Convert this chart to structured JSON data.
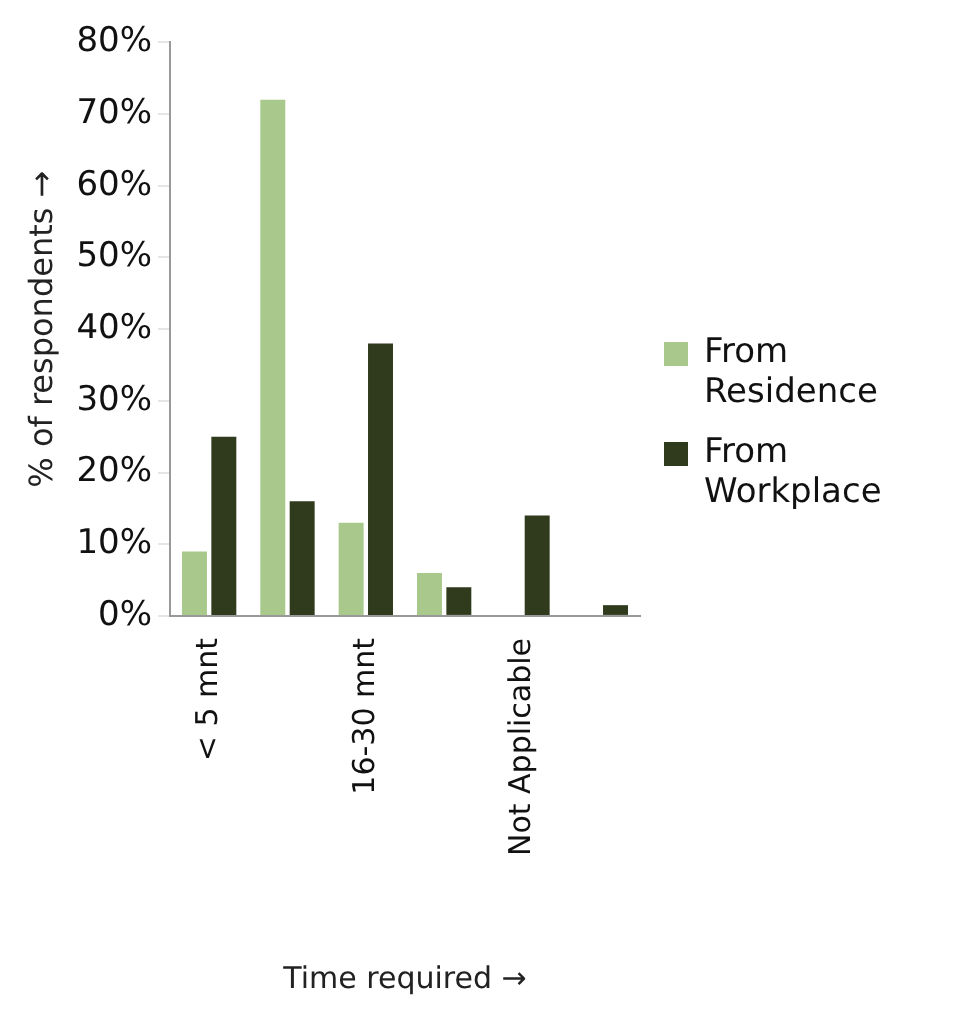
{
  "chart_data": {
    "type": "bar",
    "xlabel": "Time required →",
    "ylabel": "% of respondents →",
    "categories": [
      "< 5 mnt",
      null,
      "16-30 mnt",
      null,
      "Not Applicable",
      null
    ],
    "series": [
      {
        "name": "From Residence",
        "color": "#a9c98c",
        "values": [
          9,
          72,
          13,
          6,
          0,
          0
        ]
      },
      {
        "name": "From Workplace",
        "color": "#2f3b1c",
        "values": [
          25,
          16,
          38,
          4,
          14,
          1.5
        ]
      }
    ],
    "ylim": [
      0,
      80
    ],
    "yticks": [
      {
        "value": 0,
        "label": "0%"
      },
      {
        "value": 10,
        "label": "10%"
      },
      {
        "value": 20,
        "label": "20%"
      },
      {
        "value": 30,
        "label": "30%"
      },
      {
        "value": 40,
        "label": "40%"
      },
      {
        "value": 50,
        "label": "50%"
      },
      {
        "value": 60,
        "label": "60%"
      },
      {
        "value": 70,
        "label": "70%"
      },
      {
        "value": 80,
        "label": "80%"
      }
    ],
    "legend": "right"
  }
}
